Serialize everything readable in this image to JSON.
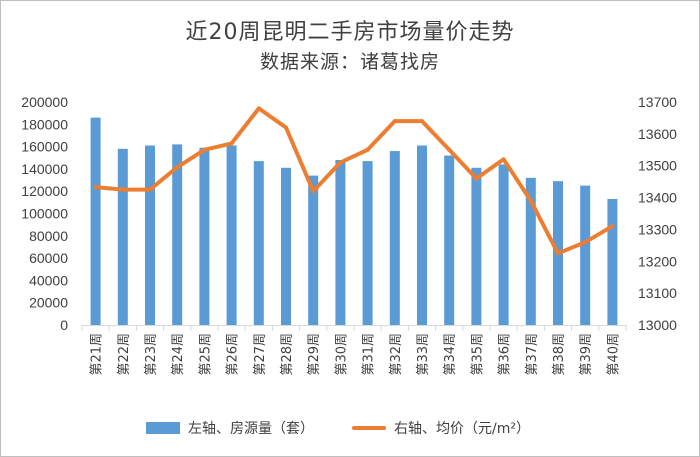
{
  "title": "近20周昆明二手房市场量价走势",
  "subtitle": "数据来源：诸葛找房",
  "colors": {
    "bar": "#5b9bd5",
    "line": "#ed7d31",
    "grid": "#d9d9d9",
    "text": "#404040"
  },
  "legend": {
    "bar_label": "左轴、房源量（套）",
    "line_label": "右轴、均价（元/m²）"
  },
  "chart_data": {
    "type": "bar+line",
    "categories": [
      "第21周",
      "第22周",
      "第23周",
      "第24周",
      "第25周",
      "第26周",
      "第27周",
      "第28周",
      "第29周",
      "第30周",
      "第31周",
      "第32周",
      "第33周",
      "第34周",
      "第35周",
      "第36周",
      "第37周",
      "第38周",
      "第39周",
      "第40周"
    ],
    "series": [
      {
        "name": "左轴、房源量（套）",
        "type": "bar",
        "axis": "left",
        "values": [
          186000,
          158000,
          161000,
          162000,
          159000,
          161000,
          147000,
          141000,
          134000,
          148000,
          147000,
          156000,
          161000,
          152000,
          141000,
          144000,
          132000,
          129000,
          125000,
          113000
        ]
      },
      {
        "name": "右轴、均价（元/m²）",
        "type": "line",
        "axis": "right",
        "values": [
          13433,
          13425,
          13425,
          13495,
          13550,
          13570,
          13680,
          13620,
          13420,
          13510,
          13550,
          13640,
          13640,
          13550,
          13460,
          13520,
          13390,
          13225,
          13260,
          13310
        ]
      }
    ],
    "left_axis": {
      "ylim": [
        0,
        200000
      ],
      "ticks": [
        "0",
        "20000",
        "40000",
        "60000",
        "80000",
        "100000",
        "120000",
        "140000",
        "160000",
        "180000",
        "200000"
      ]
    },
    "right_axis": {
      "ylim": [
        13000,
        13700
      ],
      "ticks": [
        "13000",
        "13100",
        "13200",
        "13300",
        "13400",
        "13500",
        "13600",
        "13700"
      ]
    },
    "grid": false,
    "legend_position": "bottom"
  }
}
